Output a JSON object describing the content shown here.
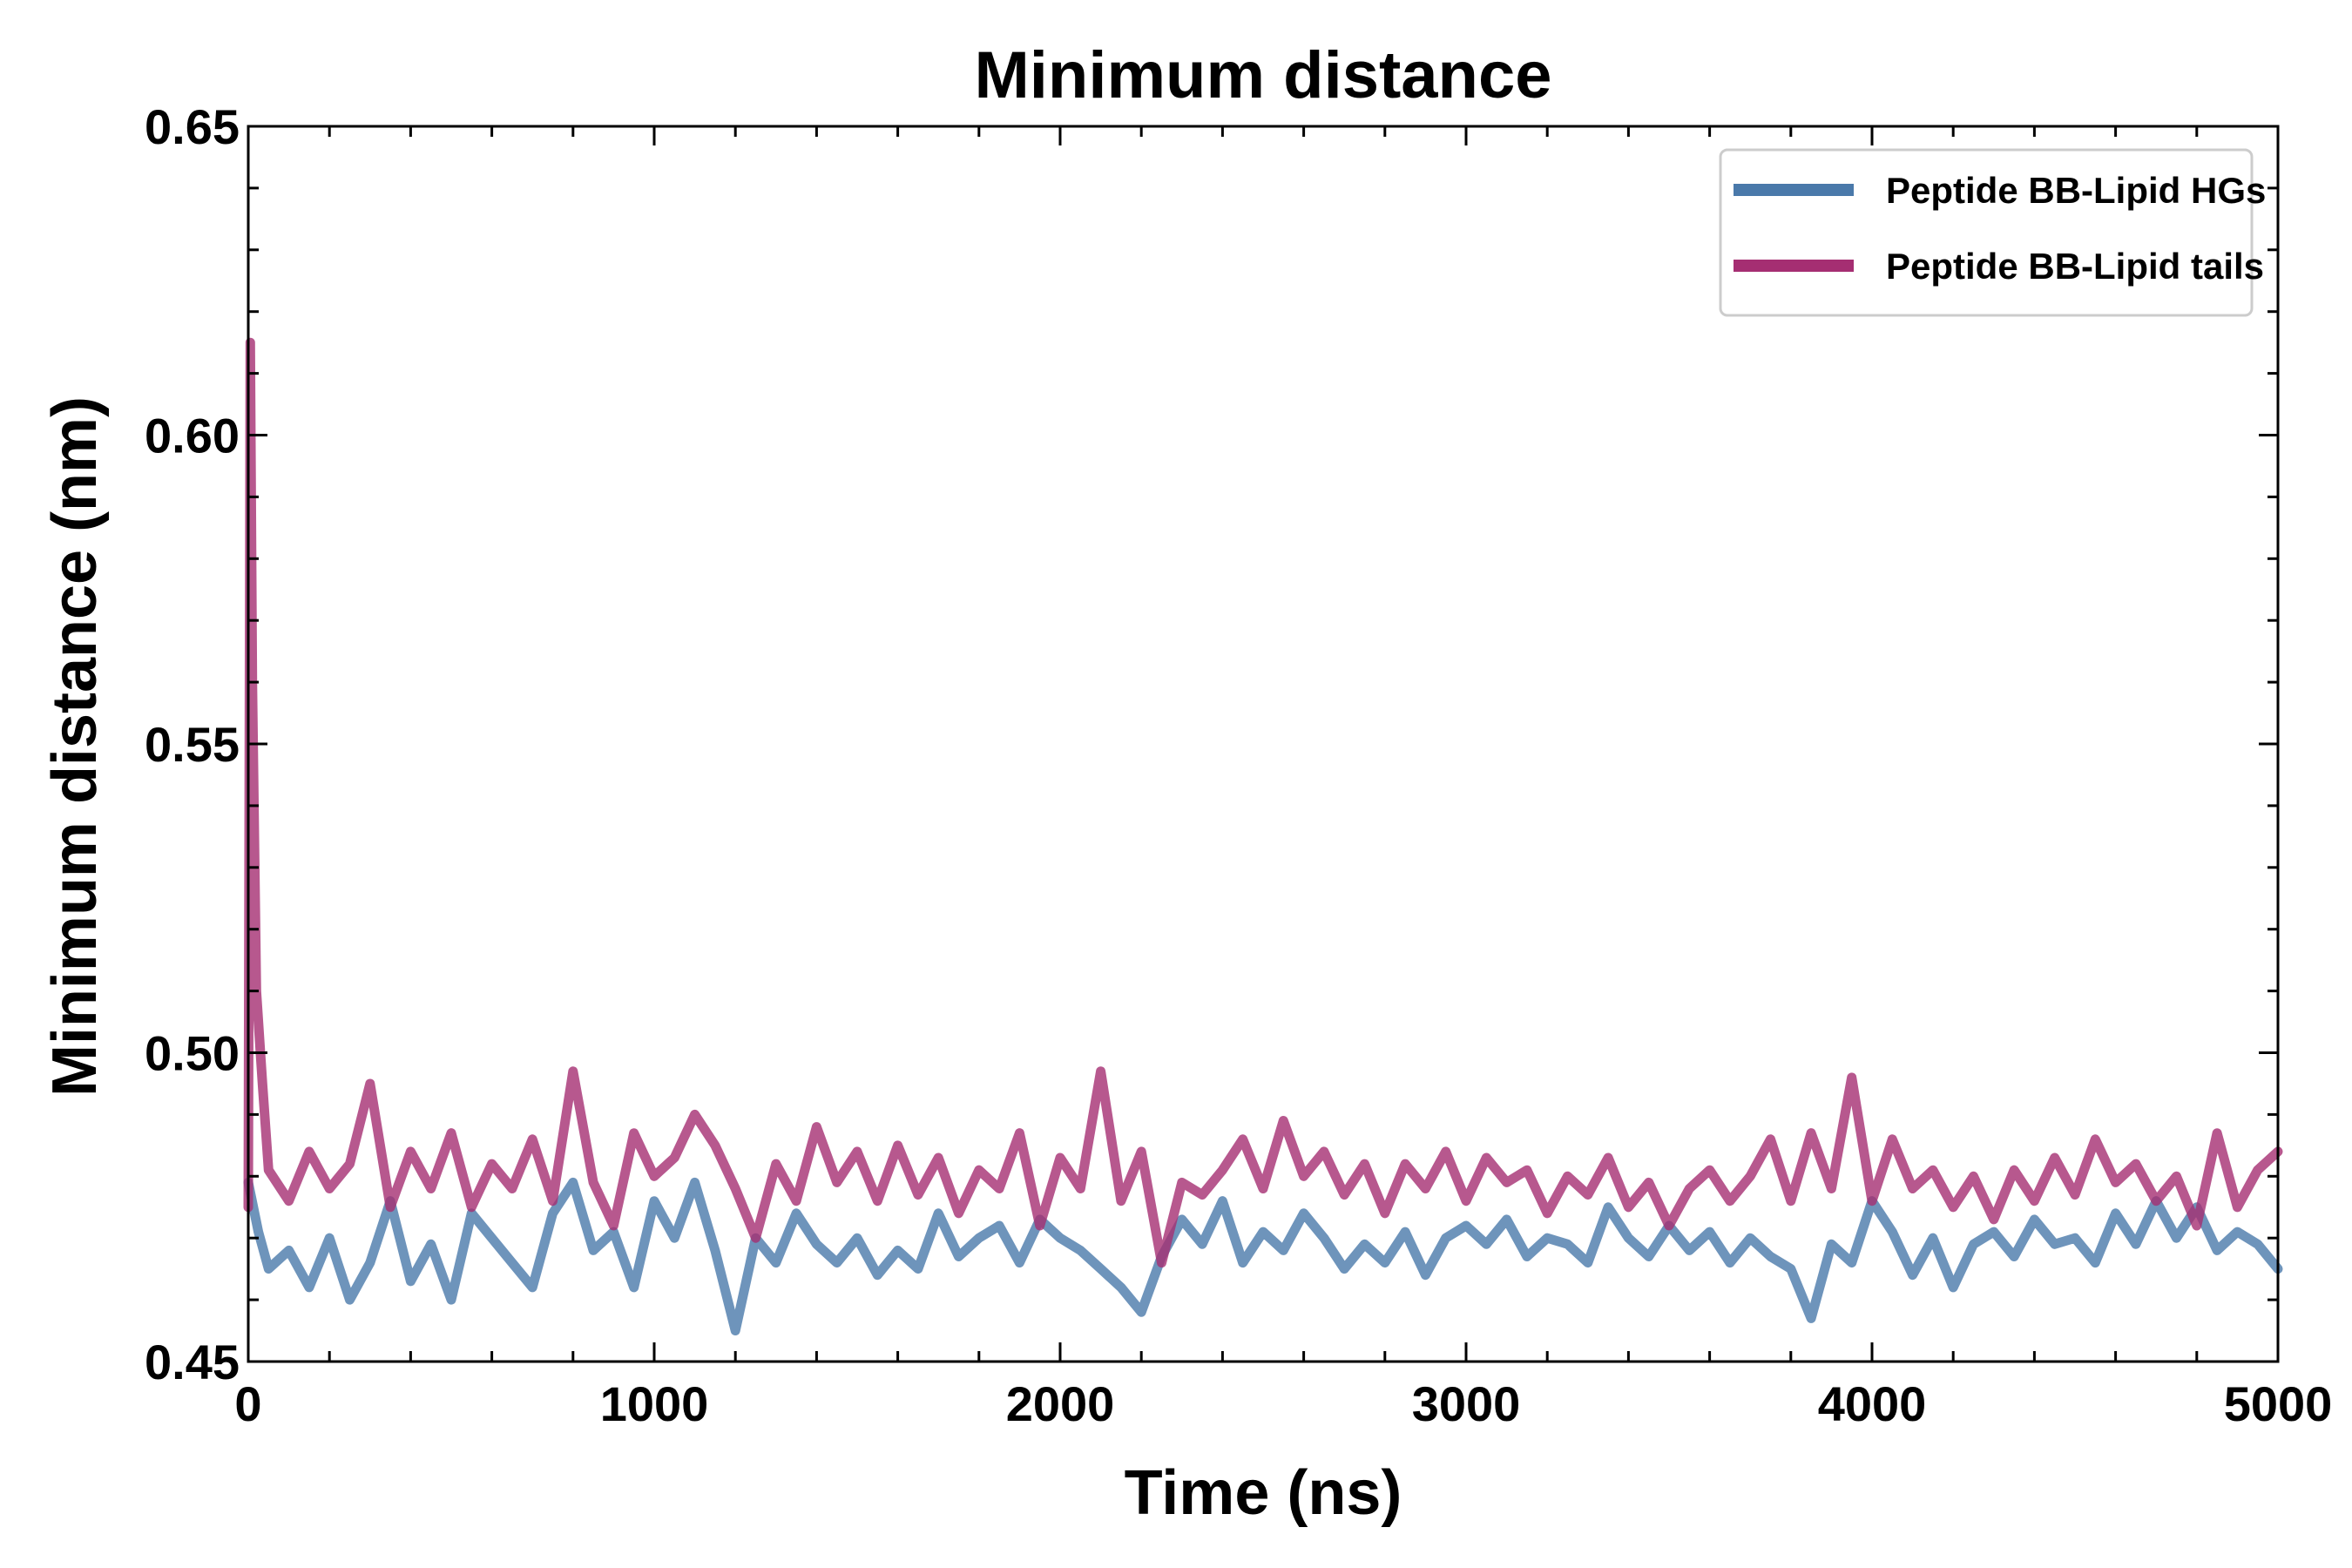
{
  "chart_data": {
    "type": "line",
    "title": "Minimum distance",
    "xlabel": "Time (ns)",
    "ylabel": "Minimum distance (nm)",
    "xlim": [
      0,
      5000
    ],
    "ylim": [
      0.45,
      0.65
    ],
    "xticks": [
      0,
      1000,
      2000,
      3000,
      4000,
      5000
    ],
    "xtick_labels": [
      "0",
      "1000",
      "2000",
      "3000",
      "4000",
      "5000"
    ],
    "yticks": [
      0.45,
      0.5,
      0.55,
      0.6,
      0.65
    ],
    "ytick_labels": [
      "0.45",
      "0.50",
      "0.55",
      "0.60",
      "0.65"
    ],
    "grid": false,
    "legend_position": "top-right",
    "series": [
      {
        "name": "Peptide BB-Lipid HGs",
        "color": "#4a79aa",
        "x": [
          0,
          25,
          50,
          100,
          150,
          200,
          250,
          300,
          350,
          400,
          450,
          500,
          550,
          600,
          650,
          700,
          750,
          800,
          850,
          900,
          950,
          1000,
          1050,
          1100,
          1150,
          1200,
          1250,
          1300,
          1350,
          1400,
          1450,
          1500,
          1550,
          1600,
          1650,
          1700,
          1750,
          1800,
          1850,
          1900,
          1950,
          2000,
          2050,
          2100,
          2150,
          2200,
          2250,
          2300,
          2350,
          2400,
          2450,
          2500,
          2550,
          2600,
          2650,
          2700,
          2750,
          2800,
          2850,
          2900,
          2950,
          3000,
          3050,
          3100,
          3150,
          3200,
          3250,
          3300,
          3350,
          3400,
          3450,
          3500,
          3550,
          3600,
          3650,
          3700,
          3750,
          3800,
          3850,
          3900,
          3950,
          4000,
          4050,
          4100,
          4150,
          4200,
          4250,
          4300,
          4350,
          4400,
          4450,
          4500,
          4550,
          4600,
          4650,
          4700,
          4750,
          4800,
          4850,
          4900,
          4950,
          5000
        ],
        "values": [
          0.479,
          0.471,
          0.465,
          0.468,
          0.462,
          0.47,
          0.46,
          0.466,
          0.476,
          0.463,
          0.469,
          0.46,
          0.474,
          0.47,
          0.466,
          0.462,
          0.474,
          0.479,
          0.468,
          0.471,
          0.462,
          0.476,
          0.47,
          0.479,
          0.468,
          0.455,
          0.47,
          0.466,
          0.474,
          0.469,
          0.466,
          0.47,
          0.464,
          0.468,
          0.465,
          0.474,
          0.467,
          0.47,
          0.472,
          0.466,
          0.473,
          0.47,
          0.468,
          0.465,
          0.462,
          0.458,
          0.467,
          0.473,
          0.469,
          0.476,
          0.466,
          0.471,
          0.468,
          0.474,
          0.47,
          0.465,
          0.469,
          0.466,
          0.471,
          0.464,
          0.47,
          0.472,
          0.469,
          0.473,
          0.467,
          0.47,
          0.469,
          0.466,
          0.475,
          0.47,
          0.467,
          0.472,
          0.468,
          0.471,
          0.466,
          0.47,
          0.467,
          0.465,
          0.457,
          0.469,
          0.466,
          0.476,
          0.471,
          0.464,
          0.47,
          0.462,
          0.469,
          0.471,
          0.467,
          0.473,
          0.469,
          0.47,
          0.466,
          0.474,
          0.469,
          0.476,
          0.47,
          0.475,
          0.468,
          0.471,
          0.469,
          0.465
        ]
      },
      {
        "name": "Peptide BB-Lipid tails",
        "color": "#a52e72",
        "x": [
          0,
          5,
          10,
          20,
          35,
          50,
          100,
          150,
          200,
          250,
          300,
          350,
          400,
          450,
          500,
          550,
          600,
          650,
          700,
          750,
          800,
          850,
          900,
          950,
          1000,
          1050,
          1100,
          1150,
          1200,
          1250,
          1300,
          1350,
          1400,
          1450,
          1500,
          1550,
          1600,
          1650,
          1700,
          1750,
          1800,
          1850,
          1900,
          1950,
          2000,
          2050,
          2100,
          2150,
          2200,
          2250,
          2300,
          2350,
          2400,
          2450,
          2500,
          2550,
          2600,
          2650,
          2700,
          2750,
          2800,
          2850,
          2900,
          2950,
          3000,
          3050,
          3100,
          3150,
          3200,
          3250,
          3300,
          3350,
          3400,
          3450,
          3500,
          3550,
          3600,
          3650,
          3700,
          3750,
          3800,
          3850,
          3900,
          3950,
          4000,
          4050,
          4100,
          4150,
          4200,
          4250,
          4300,
          4350,
          4400,
          4450,
          4500,
          4550,
          4600,
          4650,
          4700,
          4750,
          4800,
          4850,
          4900,
          4950,
          5000
        ],
        "values": [
          0.475,
          0.615,
          0.56,
          0.51,
          0.495,
          0.481,
          0.476,
          0.484,
          0.478,
          0.482,
          0.495,
          0.475,
          0.484,
          0.478,
          0.487,
          0.475,
          0.482,
          0.478,
          0.486,
          0.476,
          0.497,
          0.479,
          0.472,
          0.487,
          0.48,
          0.483,
          0.49,
          0.485,
          0.478,
          0.47,
          0.482,
          0.476,
          0.488,
          0.479,
          0.484,
          0.476,
          0.485,
          0.477,
          0.483,
          0.474,
          0.481,
          0.478,
          0.487,
          0.472,
          0.483,
          0.478,
          0.497,
          0.476,
          0.484,
          0.466,
          0.479,
          0.477,
          0.481,
          0.486,
          0.478,
          0.489,
          0.48,
          0.484,
          0.477,
          0.482,
          0.474,
          0.482,
          0.478,
          0.484,
          0.476,
          0.483,
          0.479,
          0.481,
          0.474,
          0.48,
          0.477,
          0.483,
          0.475,
          0.479,
          0.472,
          0.478,
          0.481,
          0.476,
          0.48,
          0.486,
          0.476,
          0.487,
          0.478,
          0.496,
          0.476,
          0.486,
          0.478,
          0.481,
          0.475,
          0.48,
          0.473,
          0.481,
          0.476,
          0.483,
          0.477,
          0.486,
          0.479,
          0.482,
          0.476,
          0.48,
          0.472,
          0.487,
          0.475,
          0.481,
          0.484
        ]
      }
    ]
  }
}
